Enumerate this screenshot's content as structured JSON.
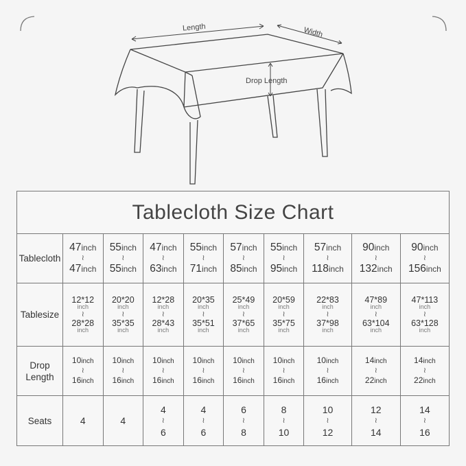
{
  "diagram": {
    "length_label": "Length",
    "width_label": "Width",
    "drop_label": "Drop Length"
  },
  "chart": {
    "title": "Tablecloth Size Chart",
    "separator": "≀",
    "unit": "inch",
    "row_labels": {
      "tablecloth": "Tablecloth",
      "tablesize": "Tablesize",
      "drop_length": "Drop Length",
      "seats": "Seats"
    },
    "columns": [
      {
        "cloth_from": "47",
        "cloth_to": "47",
        "size_from": "12*12",
        "size_to": "28*28",
        "drop_from": "10",
        "drop_to": "16",
        "seats": [
          "4"
        ]
      },
      {
        "cloth_from": "55",
        "cloth_to": "55",
        "size_from": "20*20",
        "size_to": "35*35",
        "drop_from": "10",
        "drop_to": "16",
        "seats": [
          "4"
        ]
      },
      {
        "cloth_from": "47",
        "cloth_to": "63",
        "size_from": "12*28",
        "size_to": "28*43",
        "drop_from": "10",
        "drop_to": "16",
        "seats": [
          "4",
          "6"
        ]
      },
      {
        "cloth_from": "55",
        "cloth_to": "71",
        "size_from": "20*35",
        "size_to": "35*51",
        "drop_from": "10",
        "drop_to": "16",
        "seats": [
          "4",
          "6"
        ]
      },
      {
        "cloth_from": "57",
        "cloth_to": "85",
        "size_from": "25*49",
        "size_to": "37*65",
        "drop_from": "10",
        "drop_to": "16",
        "seats": [
          "6",
          "8"
        ]
      },
      {
        "cloth_from": "55",
        "cloth_to": "95",
        "size_from": "20*59",
        "size_to": "35*75",
        "drop_from": "10",
        "drop_to": "16",
        "seats": [
          "8",
          "10"
        ]
      },
      {
        "cloth_from": "57",
        "cloth_to": "118",
        "size_from": "22*83",
        "size_to": "37*98",
        "drop_from": "10",
        "drop_to": "16",
        "seats": [
          "10",
          "12"
        ]
      },
      {
        "cloth_from": "90",
        "cloth_to": "132",
        "size_from": "47*89",
        "size_to": "63*104",
        "drop_from": "14",
        "drop_to": "22",
        "seats": [
          "12",
          "14"
        ]
      },
      {
        "cloth_from": "90",
        "cloth_to": "156",
        "size_from": "47*113",
        "size_to": "63*128",
        "drop_from": "14",
        "drop_to": "22",
        "seats": [
          "14",
          "16"
        ]
      }
    ]
  }
}
